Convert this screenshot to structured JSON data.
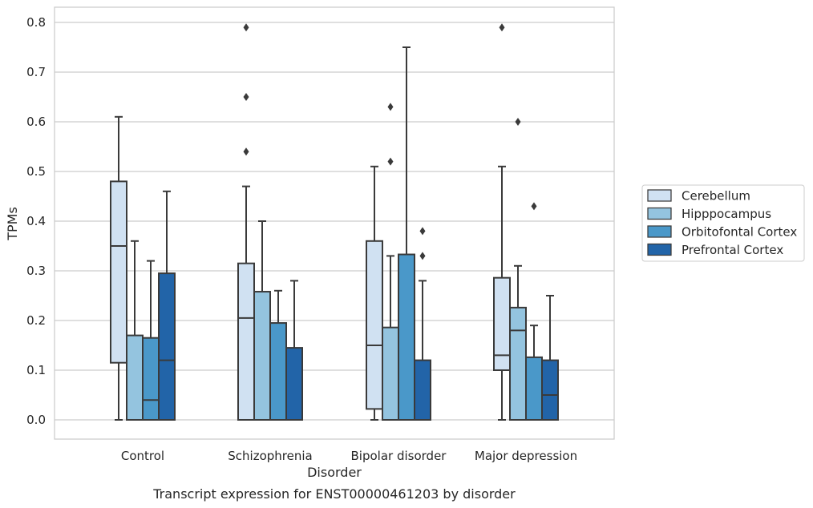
{
  "caption": "Transcript expression for ENST00000461203 by disorder",
  "chart_data": {
    "type": "box",
    "xlabel": "Disorder",
    "ylabel": "TPMs",
    "ylim": [
      -0.04,
      0.83
    ],
    "yticks": [
      0.0,
      0.1,
      0.2,
      0.3,
      0.4,
      0.5,
      0.6,
      0.7,
      0.8
    ],
    "ytick_labels": [
      "0.0",
      "0.1",
      "0.2",
      "0.3",
      "0.4",
      "0.5",
      "0.6",
      "0.7",
      "0.8"
    ],
    "grid": "horizontal",
    "legend_position": "right",
    "categories": [
      "Control",
      "Schizophrenia",
      "Bipolar disorder",
      "Major depression"
    ],
    "series": [
      {
        "name": "Cerebellum",
        "color": "#d0e1f2",
        "boxes": [
          {
            "whislo": 0.0,
            "q1": 0.115,
            "med": 0.35,
            "q3": 0.48,
            "whishi": 0.61,
            "fliers": []
          },
          {
            "whislo": 0.0,
            "q1": 0.0,
            "med": 0.205,
            "q3": 0.315,
            "whishi": 0.47,
            "fliers": [
              0.54,
              0.65,
              0.79
            ]
          },
          {
            "whislo": 0.0,
            "q1": 0.022,
            "med": 0.15,
            "q3": 0.36,
            "whishi": 0.51,
            "fliers": []
          },
          {
            "whislo": 0.0,
            "q1": 0.1,
            "med": 0.13,
            "q3": 0.286,
            "whishi": 0.51,
            "fliers": [
              0.79
            ]
          }
        ]
      },
      {
        "name": "Hipppocampus",
        "color": "#94c4df",
        "boxes": [
          {
            "whislo": 0.0,
            "q1": 0.0,
            "med": 0.0,
            "q3": 0.17,
            "whishi": 0.36,
            "fliers": []
          },
          {
            "whislo": 0.0,
            "q1": 0.0,
            "med": 0.0,
            "q3": 0.258,
            "whishi": 0.4,
            "fliers": []
          },
          {
            "whislo": 0.0,
            "q1": 0.0,
            "med": 0.0,
            "q3": 0.186,
            "whishi": 0.33,
            "fliers": [
              0.52,
              0.63
            ]
          },
          {
            "whislo": 0.0,
            "q1": 0.0,
            "med": 0.18,
            "q3": 0.226,
            "whishi": 0.31,
            "fliers": [
              0.6
            ]
          }
        ]
      },
      {
        "name": "Orbitofontal Cortex",
        "color": "#4a98c9",
        "boxes": [
          {
            "whislo": 0.0,
            "q1": 0.0,
            "med": 0.04,
            "q3": 0.165,
            "whishi": 0.32,
            "fliers": []
          },
          {
            "whislo": 0.0,
            "q1": 0.0,
            "med": 0.0,
            "q3": 0.195,
            "whishi": 0.26,
            "fliers": []
          },
          {
            "whislo": 0.0,
            "q1": 0.0,
            "med": 0.0,
            "q3": 0.333,
            "whishi": 0.75,
            "fliers": []
          },
          {
            "whislo": 0.0,
            "q1": 0.0,
            "med": 0.0,
            "q3": 0.126,
            "whishi": 0.19,
            "fliers": [
              0.43
            ]
          }
        ]
      },
      {
        "name": "Prefrontal Cortex",
        "color": "#2264a8",
        "boxes": [
          {
            "whislo": 0.0,
            "q1": 0.0,
            "med": 0.12,
            "q3": 0.295,
            "whishi": 0.46,
            "fliers": []
          },
          {
            "whislo": 0.0,
            "q1": 0.0,
            "med": 0.0,
            "q3": 0.145,
            "whishi": 0.28,
            "fliers": []
          },
          {
            "whislo": 0.0,
            "q1": 0.0,
            "med": 0.0,
            "q3": 0.12,
            "whishi": 0.28,
            "fliers": [
              0.33,
              0.38
            ]
          },
          {
            "whislo": 0.0,
            "q1": 0.0,
            "med": 0.05,
            "q3": 0.12,
            "whishi": 0.25,
            "fliers": []
          }
        ]
      }
    ]
  }
}
